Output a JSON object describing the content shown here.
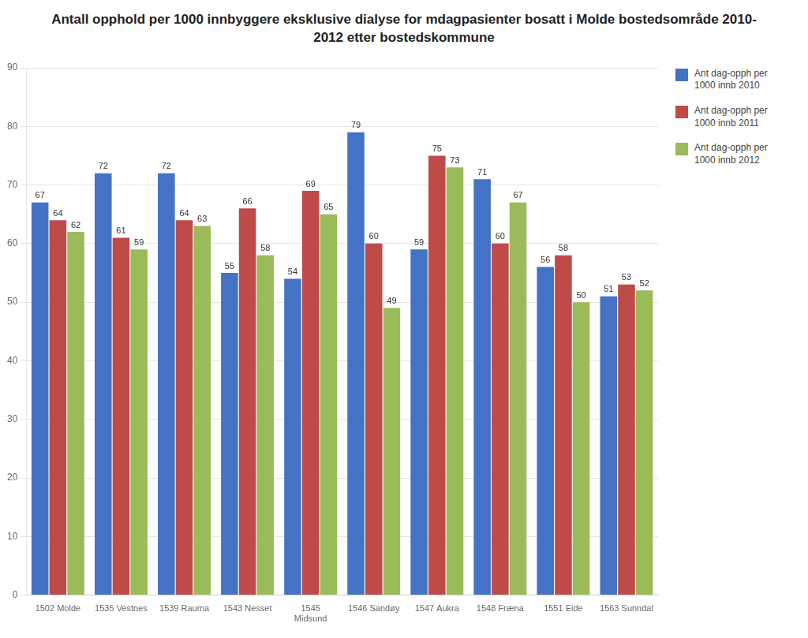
{
  "chart_data": {
    "type": "bar",
    "title": "Antall opphold per 1000 innbyggere eksklusive dialyse for mdagpasienter bosatt i Molde bostedsområde  2010-\n2012 etter bostedskommune",
    "categories": [
      "1502 Molde",
      "1535 Vestnes",
      "1539 Rauma",
      "1543 Nesset",
      "1545\nMidsund",
      "1546 Sandøy",
      "1547 Aukra",
      "1548 Fræna",
      "1551 Eide",
      "1563 Sunndal"
    ],
    "series": [
      {
        "name": "Ant dag-opph per\n1000 innb 2010",
        "color": "#4472C4",
        "values": [
          67,
          72,
          72,
          55,
          54,
          79,
          59,
          71,
          56,
          51
        ]
      },
      {
        "name": "Ant dag-opph per\n1000 innb 2011",
        "color": "#BE4B48",
        "values": [
          64,
          61,
          64,
          66,
          69,
          60,
          75,
          60,
          58,
          53
        ]
      },
      {
        "name": "Ant dag-opph per\n1000 innb 2012",
        "color": "#9BBB59",
        "values": [
          62,
          59,
          63,
          58,
          65,
          49,
          73,
          67,
          50,
          52
        ]
      }
    ],
    "ylim": [
      0,
      90
    ],
    "yticks": [
      0,
      10,
      20,
      30,
      40,
      50,
      60,
      70,
      80,
      90
    ],
    "grid": true,
    "legend": "right",
    "data_labels": true
  }
}
